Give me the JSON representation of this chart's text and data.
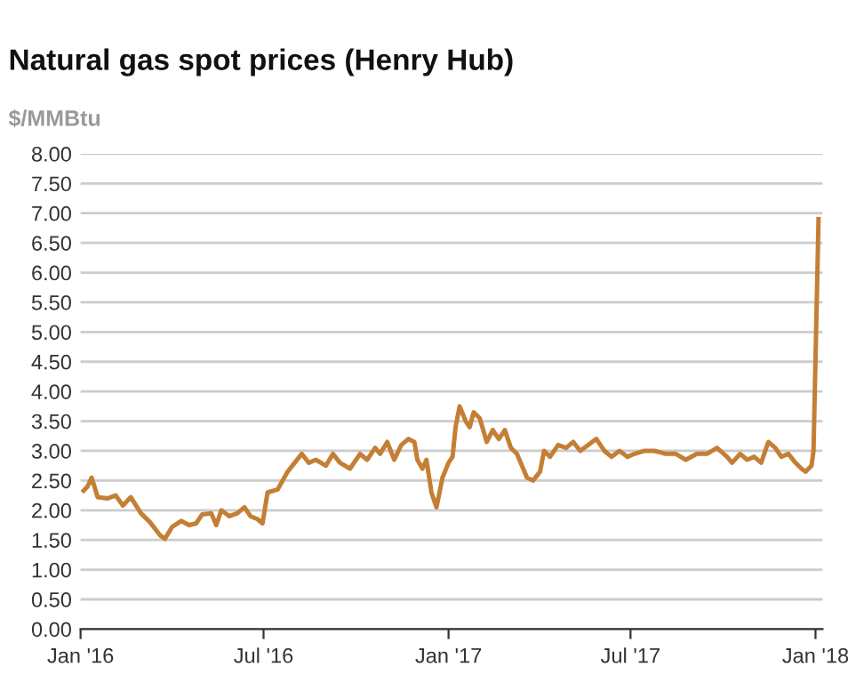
{
  "chart_data": {
    "type": "line",
    "title": "Natural gas spot prices (Henry Hub)",
    "ylabel": "$/MMBtu",
    "x": [
      "2016-01-04",
      "2016-01-08",
      "2016-01-12",
      "2016-01-18",
      "2016-01-28",
      "2016-02-05",
      "2016-02-12",
      "2016-02-20",
      "2016-03-01",
      "2016-03-10",
      "2016-03-20",
      "2016-03-25",
      "2016-04-01",
      "2016-04-10",
      "2016-04-18",
      "2016-04-25",
      "2016-05-01",
      "2016-05-10",
      "2016-05-15",
      "2016-05-20",
      "2016-05-28",
      "2016-06-05",
      "2016-06-12",
      "2016-06-18",
      "2016-06-25",
      "2016-06-30",
      "2016-07-05",
      "2016-07-15",
      "2016-07-25",
      "2016-08-01",
      "2016-08-08",
      "2016-08-15",
      "2016-08-22",
      "2016-09-01",
      "2016-09-08",
      "2016-09-15",
      "2016-09-25",
      "2016-10-05",
      "2016-10-12",
      "2016-10-20",
      "2016-10-25",
      "2016-11-01",
      "2016-11-08",
      "2016-11-15",
      "2016-11-22",
      "2016-11-28",
      "2016-12-01",
      "2016-12-06",
      "2016-12-10",
      "2016-12-15",
      "2016-12-20",
      "2016-12-26",
      "2017-01-01",
      "2017-01-05",
      "2017-01-08",
      "2017-01-12",
      "2017-01-18",
      "2017-01-22",
      "2017-01-26",
      "2017-02-01",
      "2017-02-08",
      "2017-02-14",
      "2017-02-20",
      "2017-02-26",
      "2017-03-04",
      "2017-03-10",
      "2017-03-20",
      "2017-03-26",
      "2017-04-02",
      "2017-04-06",
      "2017-04-12",
      "2017-04-20",
      "2017-04-28",
      "2017-05-05",
      "2017-05-12",
      "2017-05-20",
      "2017-05-28",
      "2017-06-05",
      "2017-06-12",
      "2017-06-20",
      "2017-06-28",
      "2017-07-05",
      "2017-07-15",
      "2017-07-25",
      "2017-08-05",
      "2017-08-15",
      "2017-08-25",
      "2017-09-05",
      "2017-09-15",
      "2017-09-25",
      "2017-10-05",
      "2017-10-10",
      "2017-10-18",
      "2017-10-25",
      "2017-11-01",
      "2017-11-08",
      "2017-11-15",
      "2017-11-22",
      "2017-11-28",
      "2017-12-05",
      "2017-12-12",
      "2017-12-18",
      "2017-12-22",
      "2017-12-28",
      "2017-12-30",
      "2018-01-04"
    ],
    "series": [
      {
        "color": "#c47f35",
        "values": [
          2.33,
          2.4,
          2.55,
          2.22,
          2.2,
          2.25,
          2.08,
          2.22,
          1.95,
          1.8,
          1.58,
          1.52,
          1.72,
          1.82,
          1.75,
          1.78,
          1.93,
          1.95,
          1.75,
          2.0,
          1.9,
          1.95,
          2.05,
          1.9,
          1.85,
          1.78,
          2.3,
          2.35,
          2.65,
          2.8,
          2.95,
          2.8,
          2.85,
          2.75,
          2.95,
          2.8,
          2.7,
          2.95,
          2.85,
          3.05,
          2.95,
          3.15,
          2.85,
          3.1,
          3.2,
          3.15,
          2.85,
          2.7,
          2.85,
          2.3,
          2.05,
          2.55,
          2.8,
          2.9,
          3.4,
          3.75,
          3.5,
          3.4,
          3.65,
          3.55,
          3.15,
          3.35,
          3.2,
          3.35,
          3.05,
          2.95,
          2.55,
          2.5,
          2.65,
          3.0,
          2.9,
          3.1,
          3.05,
          3.15,
          3.0,
          3.1,
          3.2,
          3.0,
          2.9,
          3.0,
          2.9,
          2.95,
          3.0,
          3.0,
          2.95,
          2.95,
          2.85,
          2.95,
          2.95,
          3.05,
          2.9,
          2.8,
          2.95,
          2.85,
          2.9,
          2.8,
          3.15,
          3.05,
          2.9,
          2.95,
          2.8,
          2.7,
          2.65,
          2.75,
          3.0,
          6.9
        ]
      }
    ],
    "xlim": [
      "2016-01-01",
      "2018-01-08"
    ],
    "xticks": [
      {
        "value": "2016-01-01",
        "label": "Jan '16"
      },
      {
        "value": "2016-07-01",
        "label": "Jul '16"
      },
      {
        "value": "2017-01-01",
        "label": "Jan '17"
      },
      {
        "value": "2017-07-01",
        "label": "Jul '17"
      },
      {
        "value": "2018-01-01",
        "label": "Jan '18"
      }
    ],
    "ylim": [
      0,
      8
    ],
    "yticks": [
      {
        "value": 0,
        "label": "0.00"
      },
      {
        "value": 0.5,
        "label": "0.50"
      },
      {
        "value": 1,
        "label": "1.00"
      },
      {
        "value": 1.5,
        "label": "1.50"
      },
      {
        "value": 2,
        "label": "2.00"
      },
      {
        "value": 2.5,
        "label": "2.50"
      },
      {
        "value": 3,
        "label": "3.00"
      },
      {
        "value": 3.5,
        "label": "3.50"
      },
      {
        "value": 4,
        "label": "4.00"
      },
      {
        "value": 4.5,
        "label": "4.50"
      },
      {
        "value": 5,
        "label": "5.00"
      },
      {
        "value": 5.5,
        "label": "5.50"
      },
      {
        "value": 6,
        "label": "6.00"
      },
      {
        "value": 6.5,
        "label": "6.50"
      },
      {
        "value": 7,
        "label": "7.00"
      },
      {
        "value": 7.5,
        "label": "7.50"
      },
      {
        "value": 8,
        "label": "8.00"
      }
    ],
    "grid": "y",
    "legend": false,
    "marker": "none",
    "line_style": "solid"
  }
}
